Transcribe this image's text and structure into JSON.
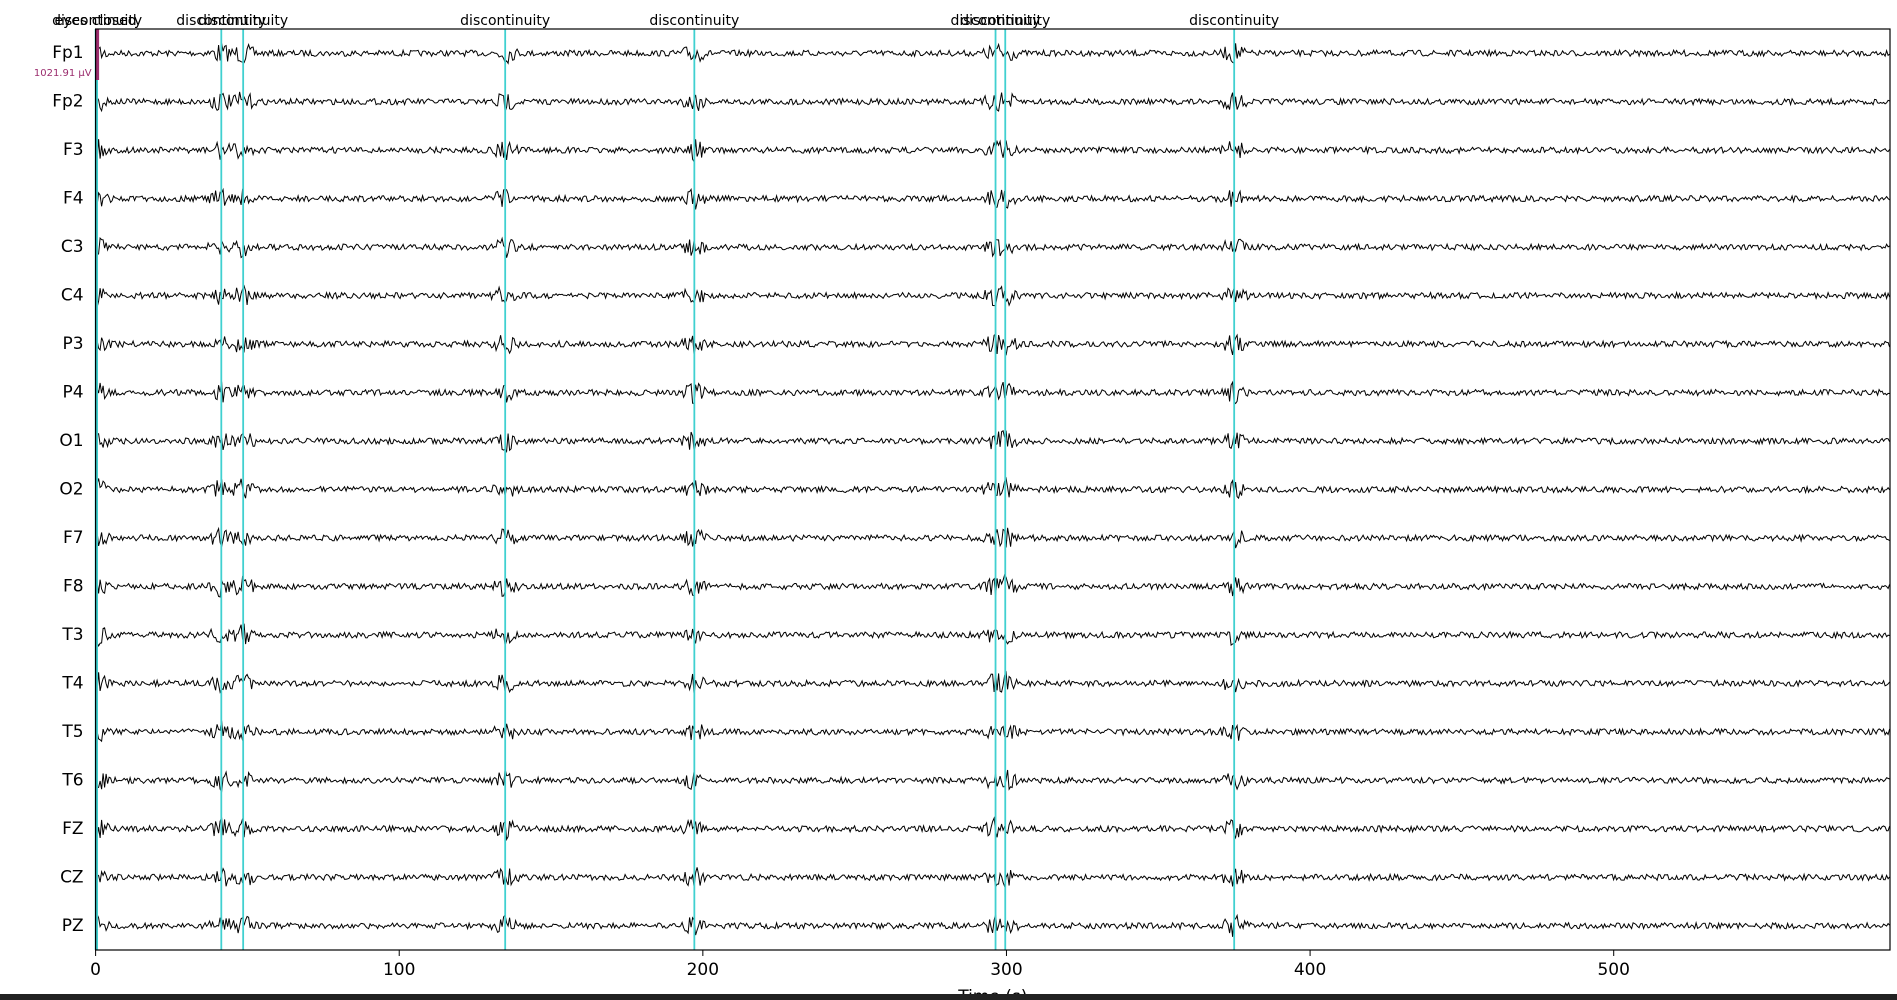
{
  "chart_data": {
    "type": "eeg",
    "channels": [
      "Fp1",
      "Fp2",
      "F3",
      "F4",
      "C3",
      "C4",
      "P3",
      "P4",
      "O1",
      "O2",
      "F7",
      "F8",
      "T3",
      "T4",
      "T5",
      "T6",
      "FZ",
      "CZ",
      "PZ"
    ],
    "annotations": [
      {
        "onset": 0,
        "description": "eyes closed"
      },
      {
        "onset": 0.5,
        "description": "discontinuity"
      },
      {
        "onset": 41.4,
        "description": "discontinuity"
      },
      {
        "onset": 48.6,
        "description": "discontinuity"
      },
      {
        "onset": 134.9,
        "description": "discontinuity"
      },
      {
        "onset": 197.2,
        "description": "discontinuity"
      },
      {
        "onset": 296.4,
        "description": "discontinuity"
      },
      {
        "onset": 299.6,
        "description": "discontinuity"
      },
      {
        "onset": 375,
        "description": "discontinuity"
      }
    ],
    "scale_bar": {
      "label": "1021.91 µV"
    },
    "xlabel": "Time (s)",
    "xlim": [
      0,
      591
    ],
    "xticks": [
      0,
      100,
      200,
      300,
      400,
      500
    ]
  }
}
